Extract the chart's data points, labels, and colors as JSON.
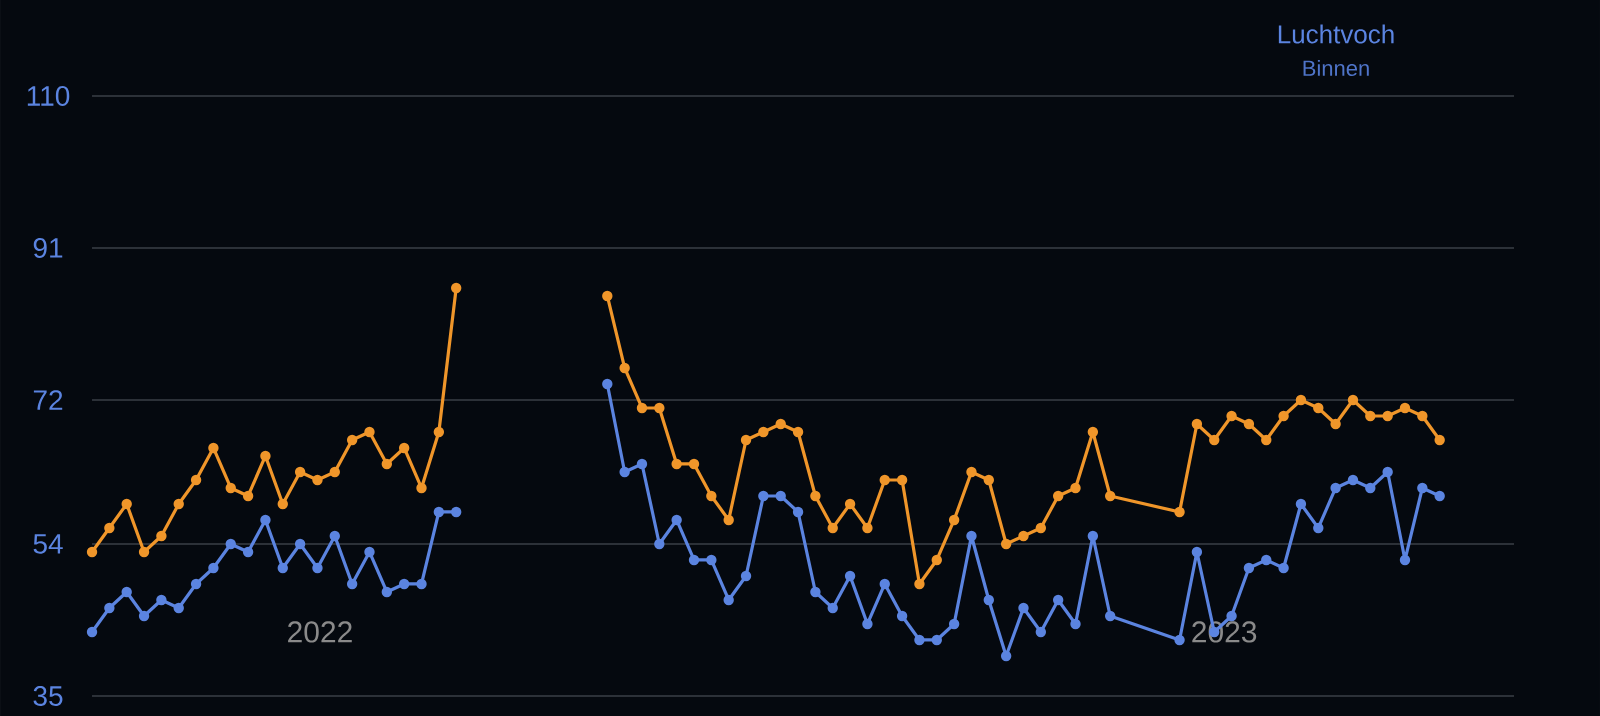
{
  "chart_data": {
    "type": "line",
    "title": "Luchtvoch",
    "subtitle": "Binnen",
    "x": [
      "2021-10-01",
      "2021-10-08",
      "2021-10-15",
      "2021-10-22",
      "2021-10-29",
      "2021-11-05",
      "2021-11-12",
      "2021-11-19",
      "2021-11-26",
      "2021-12-03",
      "2021-12-10",
      "2021-12-17",
      "2021-12-24",
      "2021-12-31",
      "2022-01-07",
      "2022-01-14",
      "2022-01-21",
      "2022-01-28",
      "2022-02-04",
      "2022-02-11",
      "2022-02-18",
      "2022-02-25",
      "2022-03-30",
      "2022-04-27",
      "2022-05-04",
      "2022-05-11",
      "2022-05-18",
      "2022-05-25",
      "2022-06-01",
      "2022-06-08",
      "2022-06-15",
      "2022-06-22",
      "2022-06-29",
      "2022-07-06",
      "2022-07-13",
      "2022-07-20",
      "2022-07-27",
      "2022-08-03",
      "2022-08-10",
      "2022-08-17",
      "2022-08-24",
      "2022-08-31",
      "2022-09-07",
      "2022-09-14",
      "2022-09-21",
      "2022-09-28",
      "2022-10-05",
      "2022-10-12",
      "2022-10-19",
      "2022-10-26",
      "2022-11-02",
      "2022-11-09",
      "2022-11-16",
      "2022-12-14",
      "2022-12-21",
      "2022-12-28",
      "2023-01-04",
      "2023-01-11",
      "2023-01-18",
      "2023-01-25",
      "2023-02-01",
      "2023-02-08",
      "2023-02-15",
      "2023-02-22",
      "2023-03-01",
      "2023-03-08",
      "2023-03-15",
      "2023-03-22",
      "2023-03-29"
    ],
    "series": [
      {
        "color": "#f0962a",
        "values": [
          53,
          56,
          59,
          53,
          55,
          59,
          62,
          66,
          61,
          60,
          65,
          59,
          63,
          62,
          63,
          67,
          68,
          64,
          66,
          61,
          68,
          86,
          null,
          85,
          76,
          71,
          71,
          64,
          64,
          60,
          57,
          67,
          68,
          69,
          68,
          60,
          56,
          59,
          56,
          62,
          62,
          49,
          52,
          57,
          63,
          62,
          54,
          55,
          56,
          60,
          61,
          68,
          60,
          58,
          69,
          67,
          70,
          69,
          67,
          70,
          72,
          71,
          69,
          72,
          70,
          70,
          71,
          70,
          67
        ]
      },
      {
        "color": "#5b84e0",
        "values": [
          43,
          46,
          48,
          45,
          47,
          46,
          49,
          51,
          54,
          53,
          57,
          51,
          54,
          51,
          55,
          49,
          53,
          48,
          49,
          49,
          58,
          58,
          null,
          74,
          63,
          64,
          54,
          57,
          52,
          52,
          47,
          50,
          60,
          60,
          58,
          48,
          46,
          50,
          44,
          49,
          45,
          42,
          42,
          44,
          55,
          47,
          40,
          46,
          43,
          47,
          44,
          55,
          45,
          42,
          53,
          43,
          45,
          51,
          52,
          51,
          59,
          56,
          61,
          62,
          61,
          63,
          52,
          61,
          60
        ]
      }
    ],
    "xlim": [
      "2021-10-01",
      "2023-04-28"
    ],
    "ylim": [
      35,
      110
    ],
    "xticks": [
      "2022",
      "2023"
    ],
    "yticks": [
      35,
      54,
      72,
      91,
      110
    ],
    "grid": "y",
    "marker": "circle",
    "line_style": "solid"
  }
}
